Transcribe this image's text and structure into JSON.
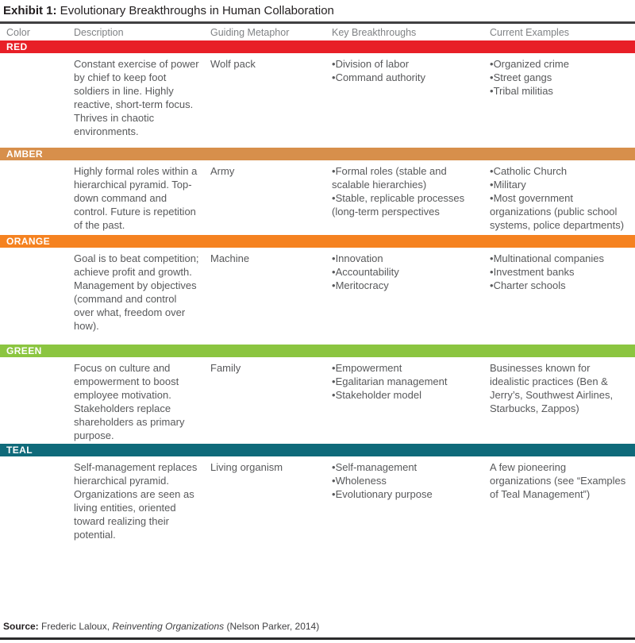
{
  "title": {
    "prefix": "Exhibit 1:",
    "text": " Evolutionary Breakthroughs in Human Collaboration"
  },
  "table": {
    "headers": [
      "Color",
      "Description",
      "Guiding Metaphor",
      "Key Breakthroughs",
      "Current Examples"
    ],
    "rows": [
      {
        "color_label": "RED",
        "band_color": "#E81F27",
        "description": "Constant exercise of power by chief to keep foot soldiers in line. Highly reactive, short-term focus. Thrives in chaotic environments.",
        "guiding_metaphor": "Wolf pack",
        "key_breakthroughs": [
          "Division of labor",
          "Command authority"
        ],
        "current_examples": {
          "bulleted": true,
          "items": [
            "Organized crime",
            "Street gangs",
            "Tribal militias"
          ]
        }
      },
      {
        "color_label": "AMBER",
        "band_color": "#D78F4B",
        "description": "Highly formal roles within a hierarchical pyramid. Top-down command and control. Future is repetition of the past.",
        "guiding_metaphor": "Army",
        "key_breakthroughs": [
          "Formal roles (stable and scalable hierarchies)",
          "Stable, replicable processes (long-term perspectives"
        ],
        "current_examples": {
          "bulleted": true,
          "items": [
            "Catholic Church",
            "Military",
            "Most government organizations (public school systems, police departments)"
          ]
        }
      },
      {
        "color_label": "ORANGE",
        "band_color": "#F58220",
        "description": "Goal is to beat competition; achieve profit and growth. Management by objectives (command and control over what, freedom over how).",
        "guiding_metaphor": "Machine",
        "key_breakthroughs": [
          "Innovation",
          "Accountability",
          "Meritocracy"
        ],
        "current_examples": {
          "bulleted": true,
          "items": [
            "Multinational companies",
            "Investment banks",
            "Charter schools"
          ]
        }
      },
      {
        "color_label": "GREEN",
        "band_color": "#8BC540",
        "description": "Focus on culture and empowerment to boost employee motivation. Stakeholders replace shareholders as primary purpose.",
        "guiding_metaphor": "Family",
        "key_breakthroughs": [
          "Empowerment",
          "Egalitarian management",
          "Stakeholder model"
        ],
        "current_examples": {
          "bulleted": false,
          "items": [
            "Businesses known for idealistic practices (Ben & Jerry’s, Southwest Airlines, Starbucks, Zappos)"
          ]
        }
      },
      {
        "color_label": "TEAL",
        "band_color": "#0F6A7A",
        "description": "Self-management replaces hierarchical pyramid. Organizations are seen as living entities, oriented toward realizing their potential.",
        "guiding_metaphor": "Living organism",
        "key_breakthroughs": [
          "Self-management",
          "Wholeness",
          "Evolutionary purpose"
        ],
        "current_examples": {
          "bulleted": false,
          "items": [
            "A few pioneering organizations (see “Examples of Teal Management”)"
          ]
        }
      }
    ]
  },
  "footer": {
    "source_label": "Source:",
    "source_pre": " Frederic Laloux, ",
    "source_title": "Reinventing Organizations",
    "source_post": " (Nelson Parker, 2014)"
  }
}
